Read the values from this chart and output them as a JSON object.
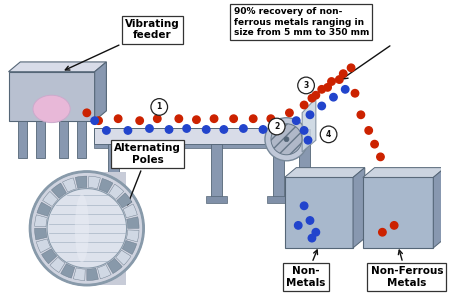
{
  "bg_color": "#ffffff",
  "conveyor_color": "#b8c0d0",
  "conveyor_dark": "#8898b0",
  "conveyor_light": "#d8dce8",
  "box_color": "#a8b8cc",
  "box_dark": "#8090a8",
  "box_light": "#ccd4e0",
  "red_dot_color": "#cc2200",
  "blue_dot_color": "#2244cc",
  "label_feeder": "Vibrating\nfeeder",
  "label_poles": "Alternating\nPoles",
  "label_nonmetals": "Non-\nMetals",
  "label_nonferrous": "Non-Ferrous\nMetals",
  "label_recovery": "90% recovery of non-\nferrous metals ranging in\nsize from 5 mm to 350 mm"
}
